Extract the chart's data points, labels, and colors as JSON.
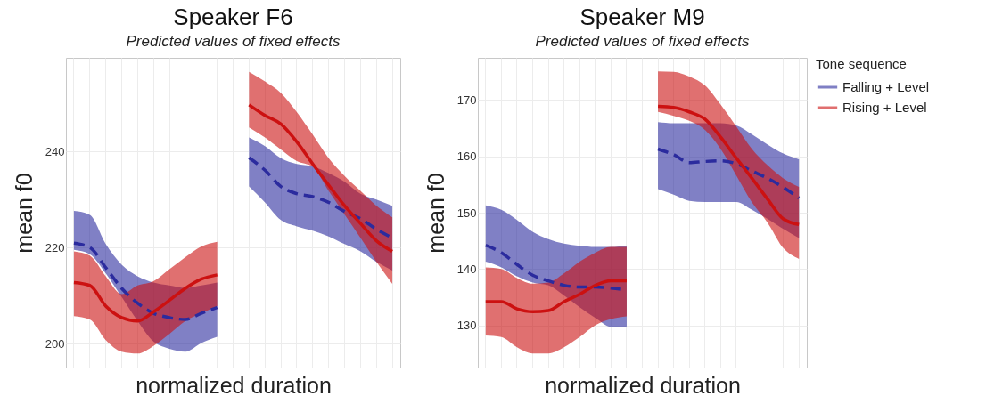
{
  "chart_data": [
    {
      "type": "line",
      "title": "Speaker F6",
      "subtitle": "Predicted values of fixed effects",
      "xlabel": "normalized duration",
      "ylabel": "mean f0",
      "categories": [
        null,
        null,
        null,
        null,
        null,
        null,
        null,
        null,
        null,
        null,
        null,
        null,
        null,
        null,
        null,
        null,
        null,
        null,
        null,
        null,
        null
      ],
      "ylim": [
        195,
        259.5
      ],
      "yticks": [
        200,
        220,
        240
      ],
      "grid": true,
      "tick_labels": "y",
      "legend": false,
      "series": [
        {
          "color": "#2b2b9e",
          "line_style": "dashed",
          "values": [
            220.9,
            220,
            215.8,
            211.5,
            208.4,
            206.3,
            205.4,
            205,
            206.3,
            207.5,
            null,
            238.7,
            236.1,
            232.7,
            231.2,
            230.6,
            229.4,
            227.5,
            226,
            223.8,
            222
          ],
          "lower": [
            219.5,
            218.6,
            214.6,
            209.7,
            204.7,
            200.4,
            198.9,
            198.3,
            200.1,
            201.4,
            null,
            232.7,
            229.4,
            225.7,
            224.4,
            223.5,
            222.3,
            220.7,
            219.2,
            217,
            215.2
          ],
          "upper": [
            227.6,
            226.8,
            220.7,
            216.4,
            214,
            212.7,
            212.1,
            211.6,
            212.1,
            212.7,
            null,
            242.9,
            241.1,
            238.6,
            237.4,
            236.9,
            235.5,
            233.7,
            231.2,
            230,
            228.7
          ]
        },
        {
          "color": "#cc1111",
          "line_style": "solid",
          "values": [
            212.7,
            212.1,
            207.8,
            205.4,
            204.7,
            206.6,
            209,
            211.5,
            213.4,
            214.3,
            null,
            249.7,
            247.5,
            245.7,
            242,
            237.4,
            233,
            228.7,
            225,
            221.4,
            219.2
          ],
          "lower": [
            205.7,
            205,
            200.7,
            198.3,
            197.9,
            199.5,
            202,
            204.7,
            206.3,
            207.8,
            null,
            245,
            242.9,
            240.4,
            238,
            236.8,
            231.8,
            226.9,
            222,
            217,
            212.4
          ],
          "upper": [
            219.2,
            218.3,
            214,
            210.3,
            212.1,
            213,
            215.5,
            218,
            220.2,
            221.2,
            null,
            256.6,
            254.6,
            252.2,
            248.2,
            243.5,
            238.6,
            234.9,
            231.8,
            228.7,
            226.3
          ]
        }
      ]
    },
    {
      "type": "line",
      "title": "Speaker M9",
      "subtitle": "Predicted values of fixed effects",
      "xlabel": "normalized duration",
      "ylabel": "mean f0",
      "legend_title": "Tone sequence",
      "categories": [
        null,
        null,
        null,
        null,
        null,
        null,
        null,
        null,
        null,
        null,
        null,
        null,
        null,
        null,
        null,
        null,
        null,
        null,
        null,
        null,
        null
      ],
      "ylim": [
        122.5,
        177.5
      ],
      "yticks": [
        130,
        140,
        150,
        160,
        170
      ],
      "grid": true,
      "tick_labels": "y",
      "legend": "right",
      "series": [
        {
          "name": "Falling + Level",
          "color": "#2b2b9e",
          "line_style": "dashed",
          "values": [
            144.2,
            142.9,
            140.8,
            138.9,
            137.9,
            137.1,
            136.8,
            136.8,
            136.6,
            136.3,
            null,
            161.3,
            160.3,
            158.9,
            159.1,
            159.2,
            158.7,
            157.4,
            156.1,
            154.5,
            152.6
          ],
          "lower": [
            141.3,
            140.3,
            138.7,
            137.6,
            137.1,
            135.3,
            133.2,
            131.3,
            129.7,
            129.6,
            null,
            154.2,
            153.2,
            152.1,
            151.9,
            151.9,
            151.9,
            150.5,
            148.9,
            147.1,
            145.5
          ],
          "upper": [
            151.3,
            150.5,
            148.7,
            146.6,
            145.3,
            144.5,
            144.1,
            143.9,
            143.9,
            144.1,
            null,
            166.1,
            165.9,
            165.9,
            165.9,
            165.9,
            165.5,
            163.9,
            162.1,
            160.5,
            159.5
          ]
        },
        {
          "name": "Rising + Level",
          "color": "#cc1111",
          "line_style": "solid",
          "values": [
            134.2,
            134.2,
            132.9,
            132.4,
            132.6,
            134.2,
            135.5,
            137.1,
            137.9,
            137.9,
            null,
            168.9,
            168.7,
            167.9,
            166.6,
            163.4,
            159.7,
            156.1,
            152.4,
            148.9,
            147.9
          ],
          "lower": [
            128.2,
            127.9,
            126.1,
            125,
            125,
            126.1,
            127.9,
            130,
            131.1,
            131.6,
            null,
            167.9,
            167.2,
            166.3,
            164.7,
            161.3,
            156.6,
            151.8,
            148.2,
            143.7,
            141.8
          ],
          "upper": [
            140.3,
            140,
            138.4,
            137.4,
            137.6,
            139.2,
            141.3,
            142.9,
            143.9,
            143.9,
            null,
            175.1,
            175,
            174.2,
            172.6,
            169.2,
            165.3,
            161.3,
            158.4,
            156.1,
            154.6
          ]
        }
      ]
    }
  ]
}
